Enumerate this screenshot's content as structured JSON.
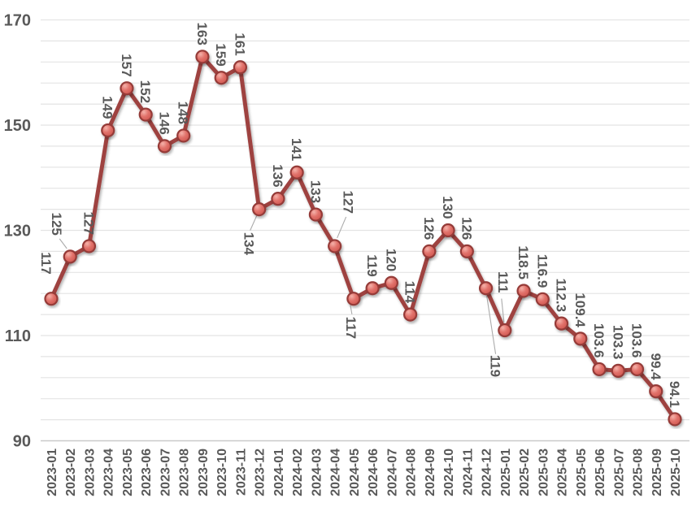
{
  "chart_data": {
    "type": "line",
    "title": "",
    "xlabel": "",
    "ylabel": "",
    "legend": "none",
    "grid": "horizontal",
    "grid_step": 4,
    "ylim": [
      90,
      170
    ],
    "yticks": [
      "90",
      "110",
      "130",
      "150",
      "170"
    ],
    "ytick_values": [
      90,
      110,
      130,
      150,
      170
    ],
    "categories": [
      "2023-01",
      "2023-02",
      "2023-03",
      "2023-04",
      "2023-05",
      "2023-06",
      "2023-07",
      "2023-08",
      "2023-09",
      "2023-10",
      "2023-11",
      "2023-12",
      "2024-01",
      "2024-02",
      "2024-03",
      "2024-04",
      "2024-05",
      "2024-06",
      "2024-07",
      "2024-08",
      "2024-09",
      "2024-10",
      "2024-11",
      "2024-12",
      "2025-01",
      "2025-02",
      "2025-03",
      "2025-04",
      "2025-05",
      "2025-06",
      "2025-07",
      "2025-08",
      "2025-09",
      "2025-10"
    ],
    "series": [
      {
        "name": "",
        "values": [
          117,
          125,
          127,
          149,
          157,
          152,
          146,
          148,
          163,
          159,
          161,
          134,
          136,
          141,
          133,
          127,
          117,
          119,
          120,
          114,
          126,
          130,
          126,
          119,
          111,
          118.5,
          116.9,
          112.3,
          109.4,
          103.6,
          103.3,
          103.6,
          99.4,
          94.1
        ],
        "point_labels": [
          "117",
          "125",
          "127",
          "149",
          "157",
          "152",
          "146",
          "148",
          "163",
          "159",
          "161",
          "134",
          "136",
          "141",
          "133",
          "127",
          "117",
          "119",
          "120",
          "114",
          "126",
          "130",
          "126",
          "119",
          "111",
          "118.5",
          "116.9",
          "112.3",
          "109.4",
          "103.6",
          "103.3",
          "103.6",
          "99.4",
          "94.1"
        ]
      }
    ],
    "label_overrides": {
      "0": {
        "gap": 30,
        "dx": -6
      },
      "1": {
        "gap": 26,
        "dx": -16,
        "leader": [
          -4,
          -10,
          -13,
          -22
        ]
      },
      "11": {
        "place": "below",
        "gap": 28,
        "dx": -12,
        "leader": [
          -3,
          8,
          -11,
          26
        ]
      },
      "15": {
        "gap": 40,
        "dx": 17,
        "leader": [
          3,
          -10,
          14,
          -36
        ]
      },
      "16": {
        "place": "below",
        "gap": 22,
        "dx": -3,
        "leader": [
          -4,
          8,
          -2,
          19
        ]
      },
      "23": {
        "place": "below",
        "gap": 82,
        "dx": 12,
        "leader": [
          1,
          9,
          12,
          81
        ]
      },
      "24": {
        "gap": 46,
        "dx": -2,
        "leader": [
          -1,
          -10,
          -4,
          -39
        ]
      }
    },
    "colors": {
      "line": "#9E4341",
      "marker_fill": "#E2736C",
      "marker_highlight": "#F4B2AA",
      "marker_shade": "#CC524B",
      "marker_stroke": "#953A37",
      "gridline": "#E4E4E4",
      "axis_line": "#C9C9C9",
      "text": "#595959",
      "leader_line": "#ABABAB",
      "background": "#FFFFFF"
    }
  }
}
